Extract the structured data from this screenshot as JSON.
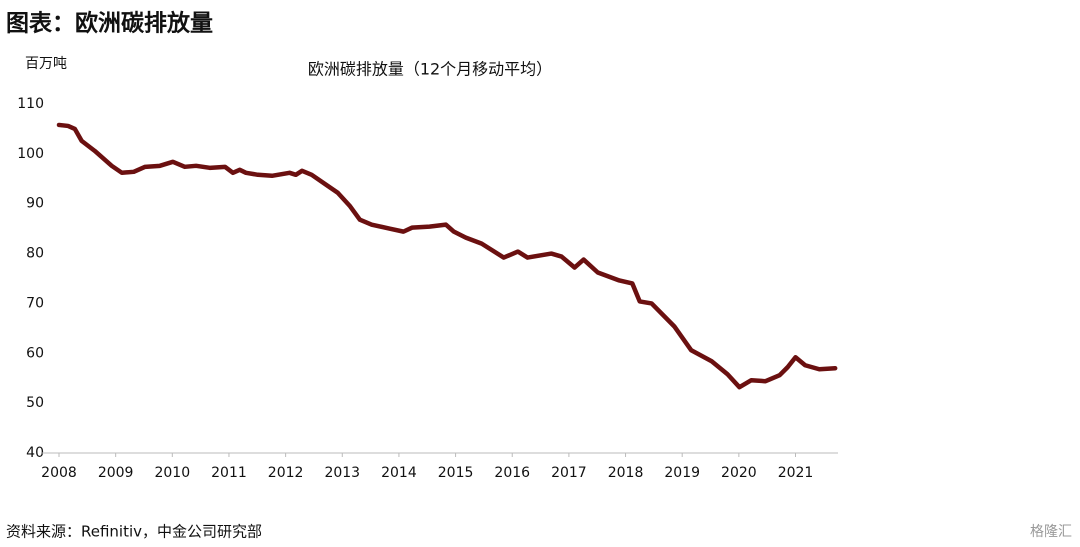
{
  "chart_data": {
    "type": "line",
    "header": "图表：欧洲碳排放量",
    "title": "欧洲碳排放量（12个月移动平均）",
    "y_label": "百万吨",
    "source": "资料来源：Refinitiv，中金公司研究部",
    "watermark": "格隆汇",
    "x": [
      2008.0,
      2008.16,
      2008.28,
      2008.4,
      2008.63,
      2008.93,
      2009.11,
      2009.32,
      2009.52,
      2009.78,
      2010.01,
      2010.22,
      2010.42,
      2010.66,
      2010.93,
      2011.07,
      2011.19,
      2011.3,
      2011.51,
      2011.76,
      2012.07,
      2012.18,
      2012.29,
      2012.46,
      2012.74,
      2012.92,
      2013.13,
      2013.31,
      2013.52,
      2013.84,
      2014.08,
      2014.23,
      2014.54,
      2014.83,
      2014.97,
      2015.18,
      2015.46,
      2015.85,
      2016.1,
      2016.27,
      2016.69,
      2016.87,
      2017.1,
      2017.26,
      2017.51,
      2017.89,
      2018.12,
      2018.25,
      2018.46,
      2018.86,
      2019.16,
      2019.52,
      2019.8,
      2020.01,
      2020.22,
      2020.47,
      2020.72,
      2020.86,
      2021.0,
      2021.17,
      2021.42,
      2021.7
    ],
    "series": [
      {
        "color": "#6b1010",
        "values": [
          105.8,
          105.6,
          105.0,
          102.6,
          100.6,
          97.6,
          96.2,
          96.4,
          97.4,
          97.6,
          98.4,
          97.4,
          97.6,
          97.2,
          97.4,
          96.2,
          96.8,
          96.2,
          95.8,
          95.6,
          96.2,
          95.8,
          96.6,
          95.8,
          93.6,
          92.2,
          89.6,
          86.8,
          85.8,
          85.0,
          84.4,
          85.2,
          85.4,
          85.8,
          84.4,
          83.2,
          82.0,
          79.2,
          80.4,
          79.2,
          80.0,
          79.4,
          77.2,
          78.8,
          76.2,
          74.6,
          74.0,
          70.4,
          70.0,
          65.4,
          60.6,
          58.4,
          55.8,
          53.2,
          54.6,
          54.4,
          55.6,
          57.2,
          59.2,
          57.6,
          56.8,
          57.0
        ]
      }
    ],
    "xlim": [
      2008,
      2021.75
    ],
    "xticks": [
      2008,
      2009,
      2010,
      2011,
      2012,
      2013,
      2014,
      2015,
      2016,
      2017,
      2018,
      2019,
      2020,
      2021
    ],
    "ylim": [
      40,
      110
    ],
    "yticks": [
      40,
      50,
      60,
      70,
      80,
      90,
      100,
      110
    ],
    "grid": false
  }
}
